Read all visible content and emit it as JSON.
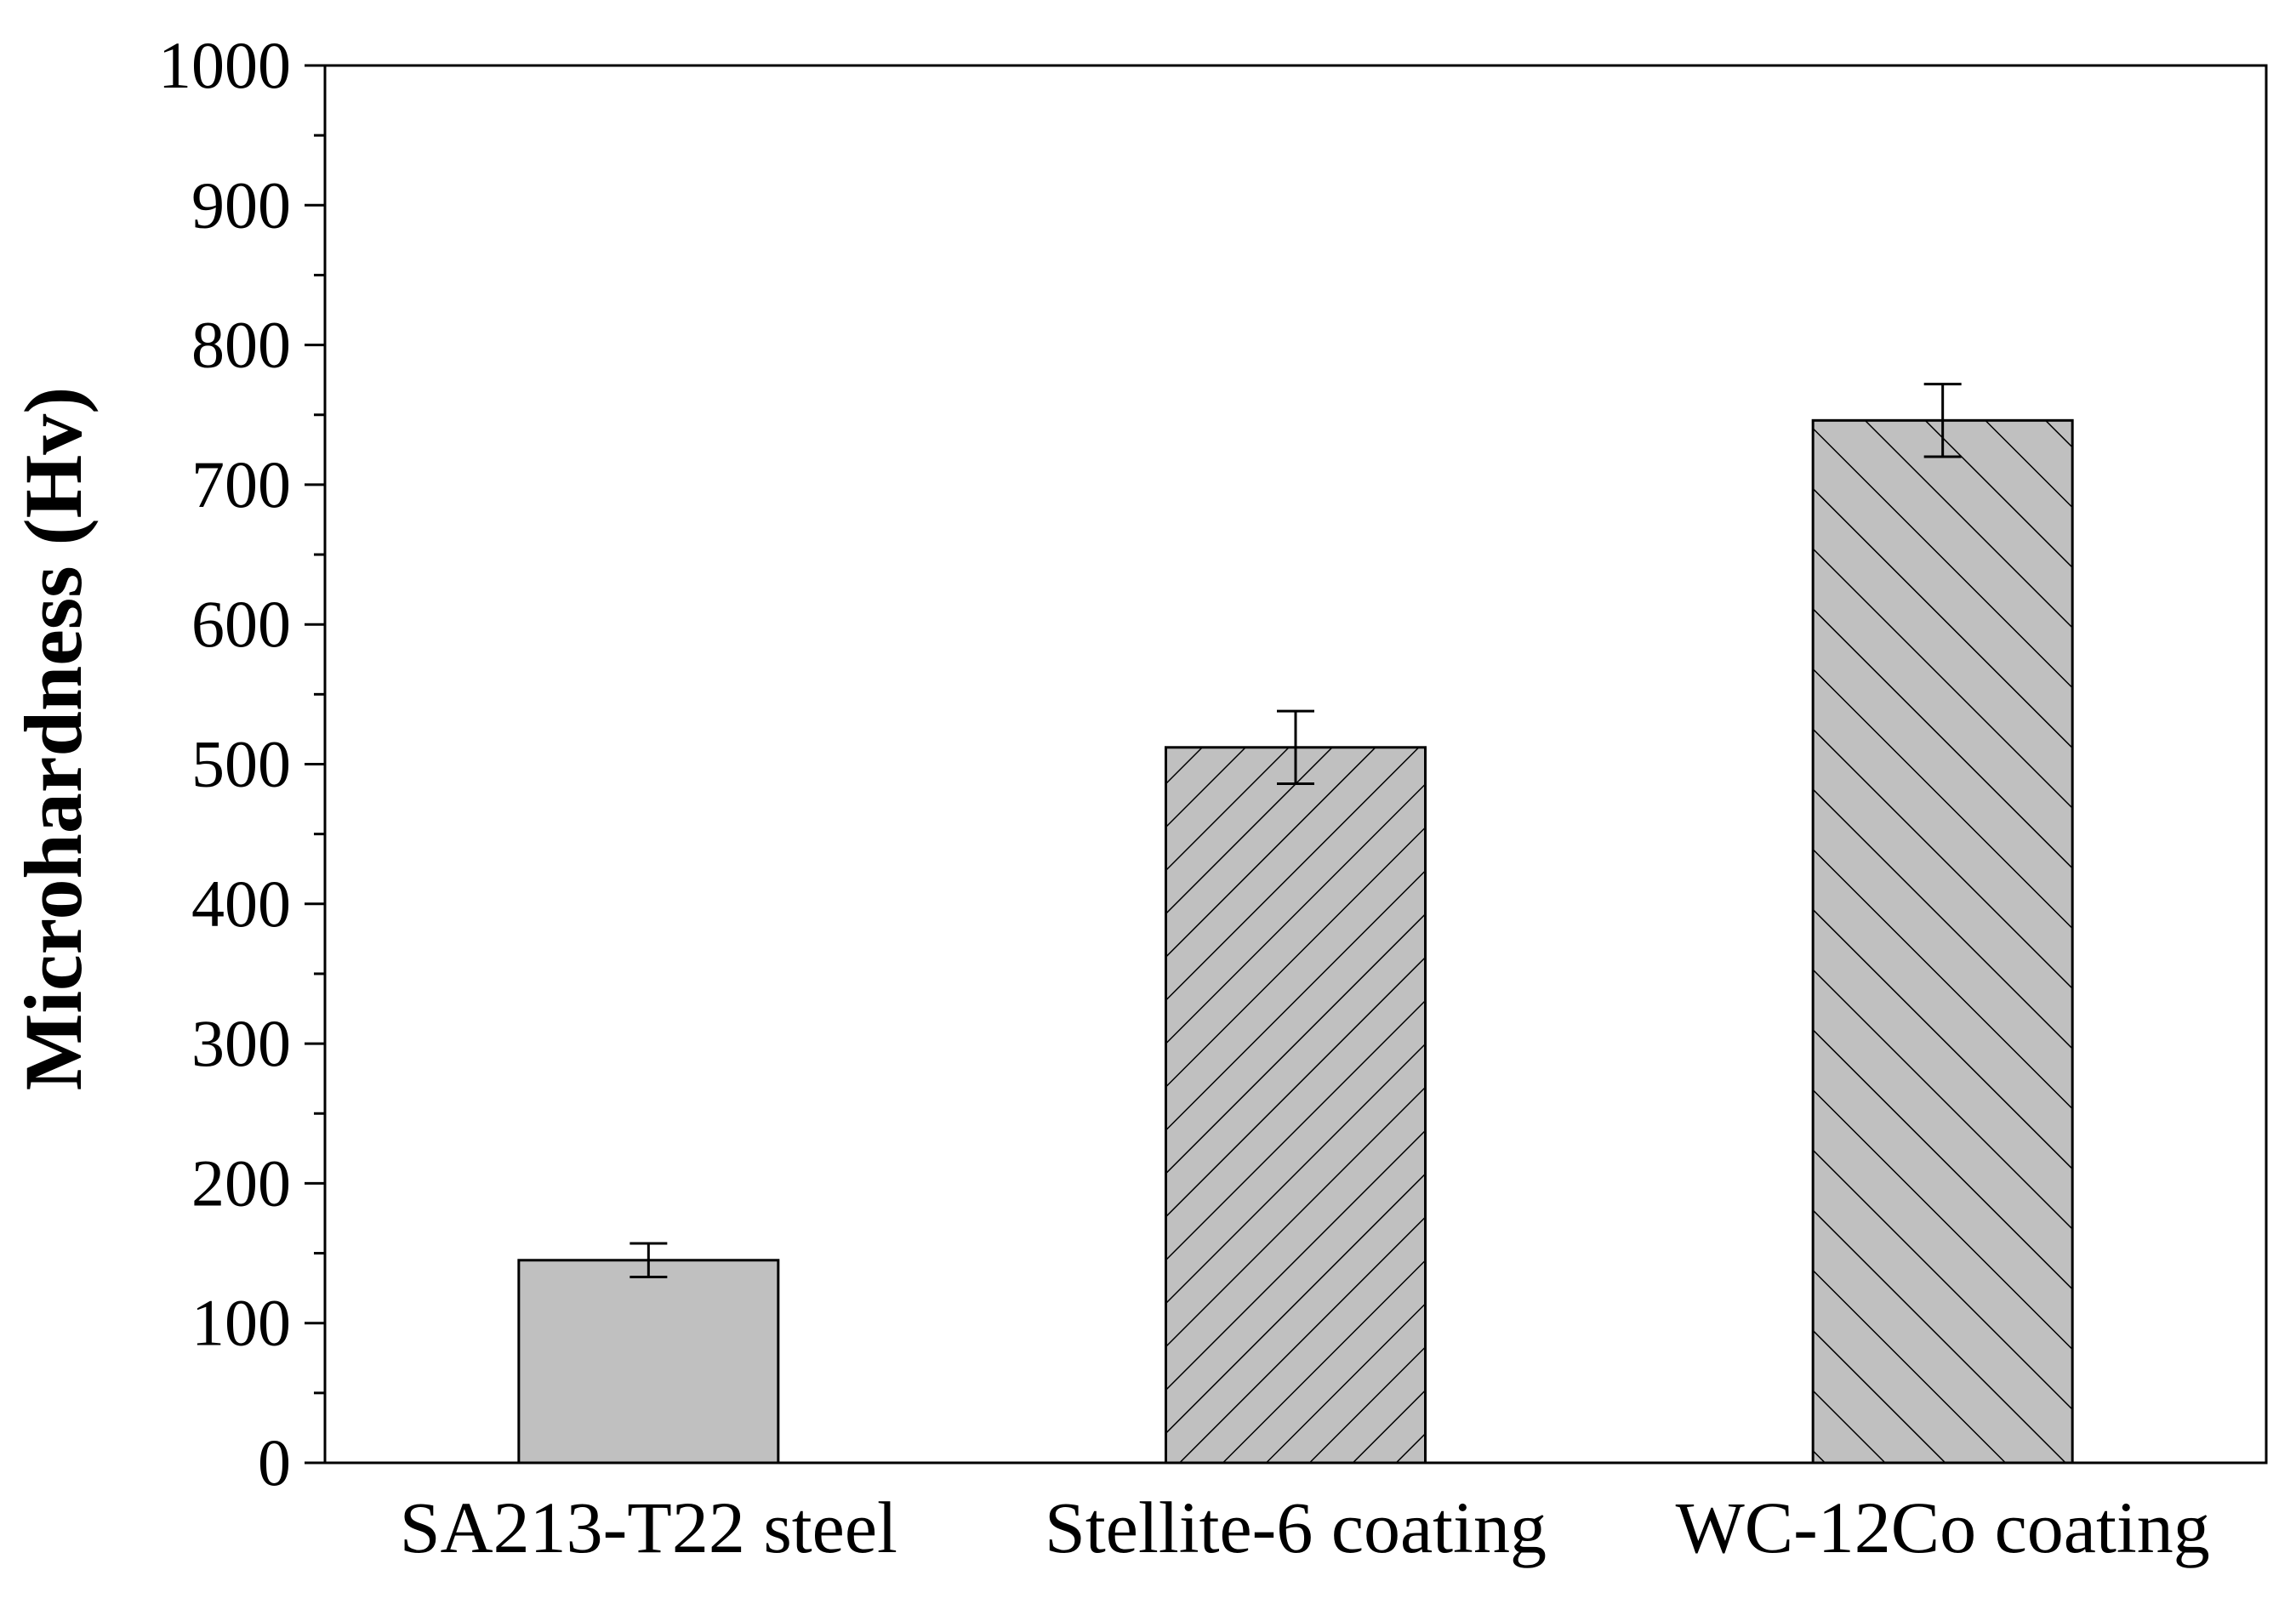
{
  "chart_data": {
    "type": "bar",
    "title": "",
    "xlabel": "",
    "ylabel": "Microhardness (Hv)",
    "ylim": [
      0,
      1000
    ],
    "yticks": [
      0,
      100,
      200,
      300,
      400,
      500,
      600,
      700,
      800,
      900,
      1000
    ],
    "yminor_step": 50,
    "categories": [
      "SA213-T22 steel",
      "Stellite-6 coating",
      "WC-12Co coating"
    ],
    "values": [
      145,
      512,
      746
    ],
    "errors": [
      12,
      26,
      26
    ],
    "hatch": [
      "none",
      "forward-diagonal",
      "backward-diagonal"
    ],
    "bar_color": "#c0c0c0",
    "edge_color": "#000000",
    "grid": false,
    "legend": false
  }
}
